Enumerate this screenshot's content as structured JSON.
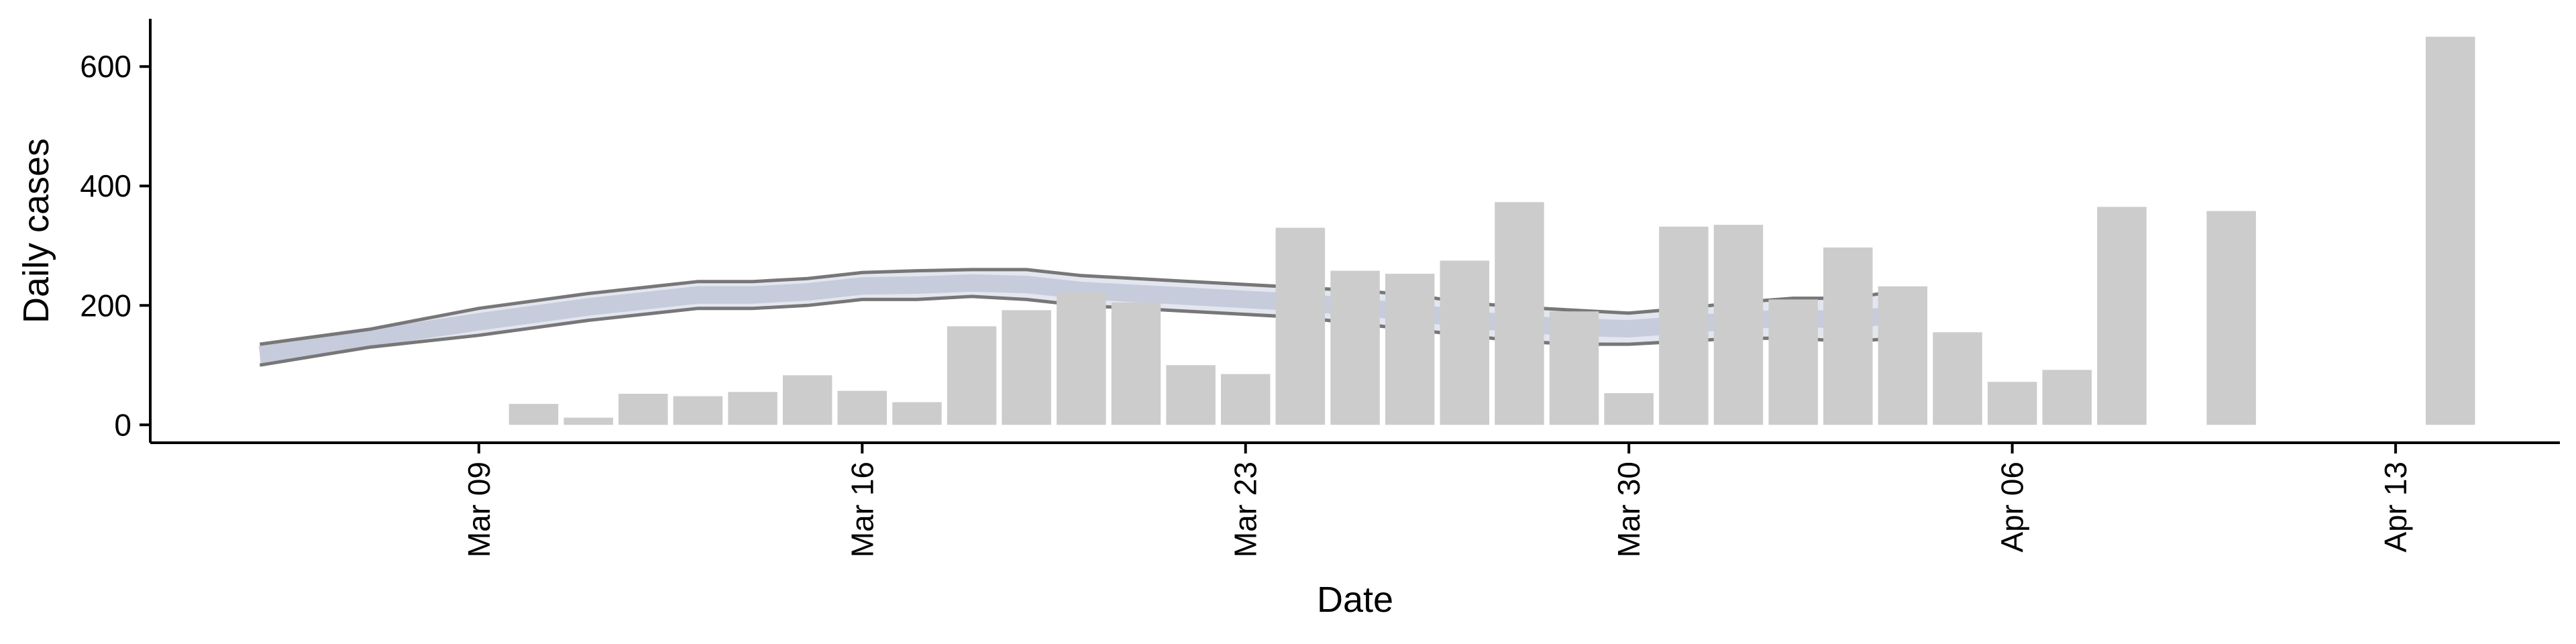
{
  "chart_data": {
    "type": "bar",
    "xlabel": "Date",
    "ylabel": "Daily cases",
    "x_ticks": [
      "Mar 09",
      "Mar 16",
      "Mar 23",
      "Mar 30",
      "Apr 06",
      "Apr 13"
    ],
    "y_ticks": [
      0,
      200,
      400,
      600
    ],
    "ylim": [
      -30,
      680
    ],
    "xlim": [
      "2020-03-03",
      "2020-04-16"
    ],
    "grid": false,
    "legend": "none",
    "series": [
      {
        "type": "bar",
        "color": "#cccccc",
        "dates": [
          "2020-03-10",
          "2020-03-11",
          "2020-03-12",
          "2020-03-13",
          "2020-03-14",
          "2020-03-15",
          "2020-03-16",
          "2020-03-17",
          "2020-03-18",
          "2020-03-19",
          "2020-03-20",
          "2020-03-21",
          "2020-03-22",
          "2020-03-23",
          "2020-03-24",
          "2020-03-25",
          "2020-03-26",
          "2020-03-27",
          "2020-03-28",
          "2020-03-29",
          "2020-03-30",
          "2020-03-31",
          "2020-04-01",
          "2020-04-02",
          "2020-04-03",
          "2020-04-04",
          "2020-04-05",
          "2020-04-06",
          "2020-04-07",
          "2020-04-08",
          "2020-04-10",
          "2020-04-14"
        ],
        "values": [
          35,
          12,
          52,
          48,
          55,
          83,
          57,
          38,
          165,
          192,
          222,
          205,
          100,
          85,
          330,
          258,
          253,
          275,
          373,
          190,
          53,
          332,
          335,
          210,
          297,
          232,
          155,
          72,
          92,
          365,
          358,
          650
        ]
      },
      {
        "type": "band",
        "color": "#ccd2e0",
        "edge_color": "#777777",
        "dates": [
          "2020-03-05",
          "2020-03-07",
          "2020-03-09",
          "2020-03-11",
          "2020-03-13",
          "2020-03-14",
          "2020-03-15",
          "2020-03-16",
          "2020-03-17",
          "2020-03-18",
          "2020-03-19",
          "2020-03-20",
          "2020-03-21",
          "2020-03-22",
          "2020-03-23",
          "2020-03-24",
          "2020-03-25",
          "2020-03-26",
          "2020-03-27",
          "2020-03-28",
          "2020-03-29",
          "2020-03-30",
          "2020-03-31",
          "2020-04-01",
          "2020-04-02",
          "2020-04-03",
          "2020-04-04"
        ],
        "lower": [
          100,
          130,
          150,
          175,
          195,
          195,
          200,
          210,
          210,
          215,
          210,
          200,
          195,
          190,
          185,
          180,
          170,
          160,
          150,
          140,
          135,
          135,
          140,
          145,
          145,
          140,
          145
        ],
        "upper": [
          135,
          160,
          195,
          220,
          240,
          240,
          245,
          255,
          258,
          260,
          260,
          250,
          245,
          240,
          235,
          230,
          225,
          218,
          205,
          197,
          192,
          187,
          195,
          205,
          212,
          212,
          225
        ]
      }
    ]
  }
}
